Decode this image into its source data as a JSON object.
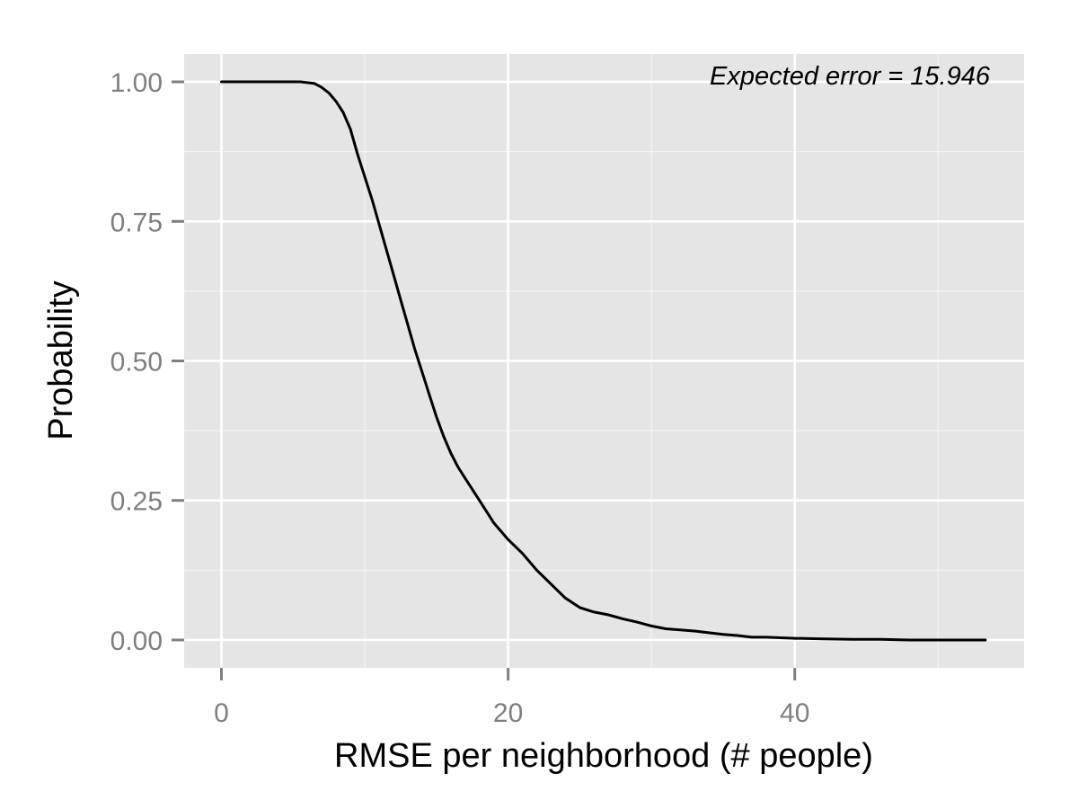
{
  "chart_data": {
    "type": "line",
    "title": "",
    "xlabel": "RMSE per neighborhood (# people)",
    "ylabel": "Probability",
    "xlim": [
      -2.6,
      56
    ],
    "ylim": [
      -0.05,
      1.05
    ],
    "x_ticks": [
      {
        "value": 0,
        "label": "0"
      },
      {
        "value": 20,
        "label": "20"
      },
      {
        "value": 40,
        "label": "40"
      }
    ],
    "x_minor_ticks": [
      10,
      30,
      50
    ],
    "y_ticks": [
      {
        "value": 0.0,
        "label": "0.00"
      },
      {
        "value": 0.25,
        "label": "0.25"
      },
      {
        "value": 0.5,
        "label": "0.50"
      },
      {
        "value": 0.75,
        "label": "0.75"
      },
      {
        "value": 1.0,
        "label": "1.00"
      }
    ],
    "y_minor_ticks": [
      0.125,
      0.375,
      0.625,
      0.875
    ],
    "grid": true,
    "annotation": "Expected error = 15.946",
    "annotation_position": "top-right",
    "colors": {
      "panel_background": "#e5e5e5",
      "grid_line": "#ffffff",
      "line": "#000000",
      "tick_text": "#7f7f7f",
      "tick_mark": "#7f7f7f"
    },
    "series": [
      {
        "x": [
          0,
          2,
          4,
          5.5,
          6.5,
          7,
          7.5,
          8,
          8.5,
          9,
          9.5,
          10,
          10.5,
          11,
          11.5,
          12,
          12.5,
          13,
          13.5,
          14,
          14.5,
          15,
          15.5,
          16,
          16.5,
          17,
          17.5,
          18,
          19,
          20,
          21,
          22,
          23,
          24,
          25,
          26,
          27,
          28,
          29,
          30,
          31,
          32,
          33,
          34,
          35,
          36,
          37,
          38,
          39,
          40,
          42,
          44,
          46,
          48,
          50,
          53.3
        ],
        "y": [
          1.0,
          1.0,
          1.0,
          1.0,
          0.997,
          0.99,
          0.98,
          0.965,
          0.945,
          0.915,
          0.87,
          0.83,
          0.79,
          0.745,
          0.7,
          0.655,
          0.61,
          0.565,
          0.52,
          0.48,
          0.44,
          0.4,
          0.365,
          0.335,
          0.31,
          0.29,
          0.27,
          0.25,
          0.21,
          0.18,
          0.155,
          0.125,
          0.1,
          0.075,
          0.058,
          0.05,
          0.045,
          0.038,
          0.032,
          0.025,
          0.02,
          0.018,
          0.016,
          0.013,
          0.01,
          0.008,
          0.005,
          0.005,
          0.004,
          0.003,
          0.002,
          0.001,
          0.001,
          0.0,
          0.0,
          0.0
        ]
      }
    ]
  }
}
